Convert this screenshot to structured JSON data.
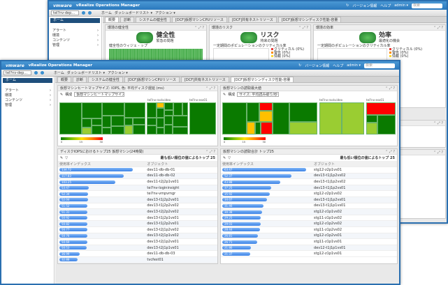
{
  "app": {
    "logo": "vmware",
    "title": "vRealize Operations Manager",
    "about": "バージョン情報",
    "help": "ヘルプ",
    "user": "admin ▾",
    "search_placeholder": "検索"
  },
  "toolbar": {
    "context": "tel?nv-dep...",
    "home": "ホーム",
    "dashboards": "ダッシュボードリスト ▾",
    "actions": "アクション ▾"
  },
  "sidebar": {
    "home": "ホーム",
    "items": [
      {
        "label": "アラート",
        "icon": "alert-icon"
      },
      {
        "label": "環境",
        "icon": "environment-icon"
      },
      {
        "label": "コンテンツ",
        "icon": "content-icon"
      },
      {
        "label": "管理",
        "icon": "admin-icon"
      }
    ]
  },
  "tabs": [
    "概要",
    "診断",
    "システムの健全性",
    "[DCF]仮想マシンCPUリソース",
    "[DCF]共有ネストリソース",
    "[DCF]仮想マシンディスク性能-容量"
  ],
  "back": {
    "widgets": [
      {
        "header": "環境の健全性",
        "title": "健全性",
        "sub": "緊急の問題",
        "chart": "健全性のウィジェ - ップ"
      },
      {
        "header": "環境のリスク",
        "title": "リスク",
        "sub": "将来の問題",
        "chart": "一定期間のポピュレーションのクリティカル率",
        "legend": [
          "クリティカル (0%)",
          "警告 (0%)",
          "情報 (0%)"
        ]
      },
      {
        "header": "環境の効率",
        "title": "効率",
        "sub": "最適化の機会",
        "chart": "一定期間のポピュレーションのクリティカル率",
        "legend": [
          "クリティカル (0%)",
          "警告 (0%)",
          "情報 (0%)"
        ]
      }
    ]
  },
  "front": {
    "heat_left": {
      "header": "仮想マシンヒートマップサイズ: IOPS, 色: 平均ディスク遅延 (ms)",
      "config_label": "構成",
      "config_value": "仮想マシンヒートマップサイズ",
      "group1": "tel?nv-rackvideo",
      "group2": "tel?nv-esx01",
      "scale": [
        "0",
        "15",
        "30"
      ]
    },
    "heat_right": {
      "header": "仮想マシンの読取最大値",
      "config_label": "構成",
      "config_value": "サイズ: 平均読み取り/秒",
      "group1": "tel?nv-rackvideo",
      "group2": "tel?nv-esx01",
      "scale": [
        "0",
        "15",
        "30"
      ]
    },
    "table_left": {
      "header": "ディスクIOPSにおけるトップ25 仮想マシン(24時間)",
      "filter": "最も低い順位の値によるトップ 25",
      "col1": "使用率インデックス",
      "col2": "オブジェクト",
      "rows": [
        [
          "134.72",
          "dev11-db-db-01"
        ],
        [
          "117.83",
          "dev11-db-db-02"
        ],
        [
          "103.25",
          "dev11-t2j2p1vs01"
        ],
        [
          "53.47",
          "tel?nv-logininsight"
        ],
        [
          "52.34",
          "tel?nv-vmpvmgr"
        ],
        [
          "52.04",
          "dev13-t1j2p2vs01"
        ],
        [
          "51.52",
          "dev13-t1j2p2vs02"
        ],
        [
          "51.31",
          "dev13-t2j2p2vs02"
        ],
        [
          "50.92",
          "dev13-t1j2p1vs01"
        ],
        [
          "50.82",
          "dev13-t1j2p2vs01"
        ],
        [
          "50.77",
          "dev13-t2j1p2vs02"
        ],
        [
          "50.76",
          "dev13-t2j1p1vs02"
        ],
        [
          "50.69",
          "dev13-t2j1p2vs01"
        ],
        [
          "50.53",
          "dev13-t2j1p1vs01"
        ],
        [
          "36.99",
          "dev11-db-db-03"
        ],
        [
          "32.88",
          "tvcfest01"
        ]
      ]
    },
    "table_right": {
      "header": "仮想マシンの読取合計 トップ25",
      "filter": "最も低い順位の値によるトップ 25",
      "col1": "使用率インデックス",
      "col2": "オブジェクト",
      "rows": [
        [
          "63.47",
          "stg12-z2p1vs01"
        ],
        [
          "52.37",
          "dev13-t1j1p2vs02"
        ],
        [
          "43.88",
          "dev13-t1j1p2vs02"
        ],
        [
          "37.25",
          "dev13-t1j1p2vs01"
        ],
        [
          "35.92",
          "stg12-z2p1vs02"
        ],
        [
          "34.07",
          "dev13-t1j1p2vs01"
        ],
        [
          "31.46",
          "dev13-t1j1p1vs01"
        ],
        [
          "30.38",
          "stg12-z1p1vs02"
        ],
        [
          "29.25",
          "stg11-z1p1vs02"
        ],
        [
          "29.03",
          "stg12-z1p2vs02"
        ],
        [
          "28.44",
          "stg11-z1p2vs02"
        ],
        [
          "26.81",
          "stg12-z1p2vs01"
        ],
        [
          "26.71",
          "stg11-z1p1vs01"
        ],
        [
          "21.86",
          "dev12-t1j1p1vs01"
        ],
        [
          "21.37",
          "stg12-z1p1vs01"
        ]
      ]
    }
  },
  "colors": {
    "titlebar": "#2a78bd",
    "accent": "#3d84e6",
    "healthy": "#0a7a00",
    "critical": "#ff0000",
    "warning": "#ffc000"
  }
}
